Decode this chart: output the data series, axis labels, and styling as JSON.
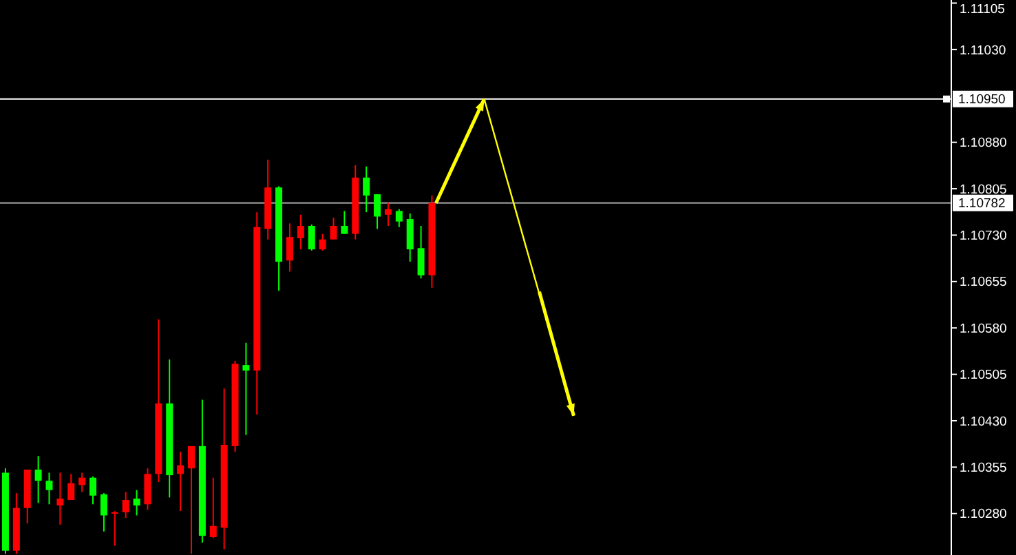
{
  "chart_data": {
    "type": "candlestick",
    "categories": [
      null,
      null,
      null,
      null,
      null,
      null,
      null,
      null,
      null,
      null,
      null,
      null,
      null,
      null,
      null,
      null,
      null,
      null,
      null,
      null,
      null,
      null,
      null,
      null,
      null,
      null,
      null,
      null,
      null,
      null,
      null,
      null,
      null,
      null,
      null,
      null,
      null,
      null,
      null,
      null,
      null,
      null,
      null,
      null,
      null,
      null,
      null,
      null,
      null,
      null,
      null,
      null,
      null,
      null,
      null,
      null,
      null,
      null,
      null,
      null,
      null,
      null,
      null,
      null,
      null,
      null,
      null,
      null,
      null,
      null,
      null,
      null,
      null,
      null,
      null,
      null,
      null,
      null,
      null,
      null,
      null,
      null,
      null,
      null,
      null,
      null,
      null
    ],
    "ohlc": [
      [
        1.10346,
        1.10353,
        1.10215,
        1.1022
      ],
      [
        1.1022,
        1.10313,
        1.10215,
        1.10289
      ],
      [
        1.10289,
        1.10351,
        1.10264,
        1.10351
      ],
      [
        1.10351,
        1.10373,
        1.10297,
        1.10333
      ],
      [
        1.10333,
        1.10346,
        1.10295,
        1.10318
      ],
      [
        1.10293,
        1.10346,
        1.10262,
        1.10304
      ],
      [
        1.10302,
        1.10344,
        1.10302,
        1.10329
      ],
      [
        1.10326,
        1.10346,
        1.10315,
        1.10338
      ],
      [
        1.10338,
        1.1034,
        1.10295,
        1.10309
      ],
      [
        1.10311,
        1.10313,
        1.10251,
        1.10277
      ],
      [
        1.10281,
        1.10284,
        1.10228,
        1.10282
      ],
      [
        1.10282,
        1.10315,
        1.10273,
        1.10302
      ],
      [
        1.10304,
        1.10318,
        1.10277,
        1.10293
      ],
      [
        1.10295,
        1.10353,
        1.10286,
        1.10344
      ],
      [
        1.10344,
        1.10594,
        1.10331,
        1.10458
      ],
      [
        1.10458,
        1.10529,
        1.10306,
        1.10342
      ],
      [
        1.10344,
        1.1038,
        1.10284,
        1.10358
      ],
      [
        1.10353,
        1.10389,
        1.10215,
        1.10389
      ],
      [
        1.10389,
        1.10464,
        1.10233,
        1.10244
      ],
      [
        1.10242,
        1.10338,
        1.1024,
        1.1026
      ],
      [
        1.10257,
        1.10482,
        1.10222,
        1.10391
      ],
      [
        1.10389,
        1.10527,
        1.1038,
        1.10522
      ],
      [
        1.1052,
        1.10556,
        1.10407,
        1.10511
      ],
      [
        1.10511,
        1.10767,
        1.1044,
        1.10743
      ],
      [
        1.1074,
        1.10852,
        1.10723,
        1.10807
      ],
      [
        1.10807,
        1.10809,
        1.1064,
        1.10687
      ],
      [
        1.10689,
        1.10749,
        1.10671,
        1.10727
      ],
      [
        1.10725,
        1.10763,
        1.10707,
        1.10745
      ],
      [
        1.10745,
        1.10747,
        1.10705,
        1.10707
      ],
      [
        1.10707,
        1.10732,
        1.10705,
        1.10723
      ],
      [
        1.10723,
        1.10758,
        1.10723,
        1.10745
      ],
      [
        1.10745,
        1.10769,
        1.10732,
        1.10732
      ],
      [
        1.10732,
        1.10843,
        1.10723,
        1.10823
      ],
      [
        1.10823,
        1.10841,
        1.10767,
        1.10794
      ],
      [
        1.10796,
        1.10796,
        1.1074,
        1.1076
      ],
      [
        1.10763,
        1.10782,
        1.10745,
        1.10772
      ],
      [
        1.10769,
        1.10772,
        1.10743,
        1.10752
      ],
      [
        1.10756,
        1.10765,
        1.10687,
        1.10707
      ],
      [
        1.10709,
        1.10745,
        1.1066,
        1.10665
      ],
      [
        1.10665,
        1.10794,
        1.10645,
        1.10782
      ],
      null,
      null,
      null,
      null,
      null,
      null,
      null,
      null,
      null,
      null,
      null,
      null,
      null,
      null,
      null,
      null,
      null,
      null,
      null,
      null,
      null,
      null,
      null,
      null,
      null,
      null,
      null,
      null,
      null,
      null,
      null,
      null,
      null,
      null,
      null,
      null,
      null,
      null,
      null,
      null,
      null,
      null,
      null,
      null,
      null,
      null,
      null
    ],
    "colors": [
      "#00ff00",
      "#ff0000",
      "#ff0000",
      "#00ff00",
      "#00ff00",
      "#ff0000",
      "#ff0000",
      "#ff0000",
      "#00ff00",
      "#00ff00",
      "#ff0000",
      "#ff0000",
      "#00ff00",
      "#ff0000",
      "#ff0000",
      "#00ff00",
      "#ff0000",
      "#ff0000",
      "#00ff00",
      "#ff0000",
      "#ff0000",
      "#ff0000",
      "#00ff00",
      "#ff0000",
      "#ff0000",
      "#00ff00",
      "#ff0000",
      "#ff0000",
      "#00ff00",
      "#ff0000",
      "#ff0000",
      "#00ff00",
      "#ff0000",
      "#00ff00",
      "#00ff00",
      "#ff0000",
      "#00ff00",
      "#00ff00",
      "#00ff00",
      "#ff0000",
      null,
      null,
      null,
      null,
      null,
      null,
      null,
      null,
      null,
      null,
      null,
      null,
      null,
      null,
      null,
      null,
      null,
      null,
      null,
      null,
      null,
      null,
      null,
      null,
      null,
      null,
      null,
      null,
      null,
      null,
      null,
      null,
      null,
      null,
      null,
      null,
      null,
      null,
      null,
      null,
      null,
      null,
      null,
      null,
      null,
      null,
      null
    ],
    "ylim": [
      1.10213,
      1.1111
    ],
    "yticks": [
      1.11105,
      {
        "value": 1.1103,
        "label": "1.11030"
      },
      {
        "value": 1.1088,
        "label": "1.10880"
      },
      1.10805,
      {
        "value": 1.1073,
        "label": "1.10730"
      },
      1.10655,
      {
        "value": 1.1058,
        "label": "1.10580"
      },
      1.10505,
      {
        "value": 1.1043,
        "label": "1.10430"
      },
      1.10355,
      {
        "value": 1.1028,
        "label": "1.10280"
      }
    ],
    "ref_lines": [
      {
        "axis": "y",
        "value": 1.1095,
        "label": "1.10950",
        "color": "#ffffff"
      },
      {
        "axis": "y",
        "value": 1.10782,
        "label": "1.10782",
        "color": "#a0a0a0"
      }
    ],
    "grid": false
  }
}
